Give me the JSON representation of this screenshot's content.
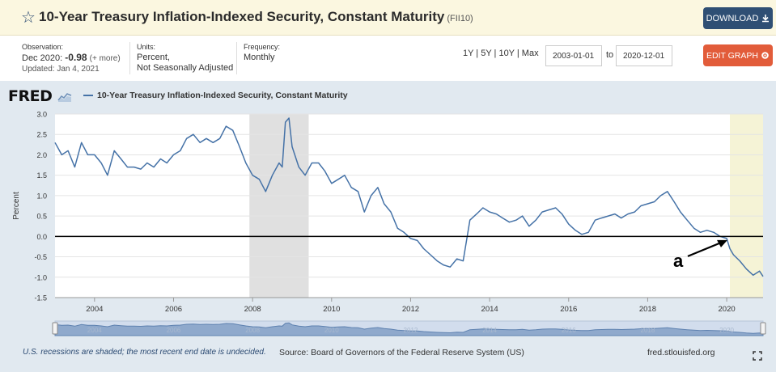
{
  "header": {
    "title": "10-Year Treasury Inflation-Indexed Security, Constant Maturity",
    "series_id": "(FII10)",
    "download_label": "DOWNLOAD",
    "star_icon": "star-icon"
  },
  "meta": {
    "observation_label": "Observation:",
    "observation_date": "Dec 2020:",
    "observation_value": "-0.98",
    "observation_note": "(+ more)",
    "updated": "Updated: Jan 4, 2021",
    "units_label": "Units:",
    "units_line1": "Percent,",
    "units_line2": "Not Seasonally Adjusted",
    "frequency_label": "Frequency:",
    "frequency_value": "Monthly"
  },
  "controls": {
    "range_links": "1Y | 5Y | 10Y | Max",
    "start_date": "2003-01-01",
    "to_label": "to",
    "end_date": "2020-12-01",
    "edit_graph_label": "EDIT GRAPH"
  },
  "logo": {
    "text": "FRED"
  },
  "legend": {
    "label": "10-Year Treasury Inflation-Indexed Security, Constant Maturity"
  },
  "footer": {
    "note": "U.S. recessions are shaded; the most recent end date is undecided.",
    "source": "Source: Board of Governors of the Federal Reserve System (US)",
    "site": "fred.stlouisfed.org"
  },
  "colors": {
    "line": "#4572a7",
    "recession": "#e0e0e0",
    "highlight": "#f5f3d6",
    "accent": "#2f4f74",
    "edit": "#e25c3a"
  },
  "chart_data": {
    "type": "line",
    "title": "10-Year Treasury Inflation-Indexed Security, Constant Maturity",
    "ylabel": "Percent",
    "xlabel": "",
    "ylim": [
      -1.5,
      3.0
    ],
    "xlim": [
      2003.0,
      2020.92
    ],
    "yticks": [
      "3.0",
      "2.5",
      "2.0",
      "1.5",
      "1.0",
      "0.5",
      "0.0",
      "-0.5",
      "-1.0",
      "-1.5"
    ],
    "ytick_values": [
      3.0,
      2.5,
      2.0,
      1.5,
      1.0,
      0.5,
      0.0,
      -0.5,
      -1.0,
      -1.5
    ],
    "xticks": [
      "2004",
      "2006",
      "2008",
      "2010",
      "2012",
      "2014",
      "2016",
      "2018",
      "2020"
    ],
    "xtick_values": [
      2004,
      2006,
      2008,
      2010,
      2012,
      2014,
      2016,
      2018,
      2020
    ],
    "navigator_labels": [
      "2004",
      "2006",
      "2008",
      "2010",
      "2012",
      "2014",
      "2016",
      "2018",
      "2020"
    ],
    "recession": {
      "start": 2007.92,
      "end": 2009.42
    },
    "highlight_region": {
      "start": 2020.08,
      "end": 2020.92
    },
    "zero_line": 0.0,
    "annotation": {
      "label": "a",
      "x": 2020.08,
      "y": -0.05
    },
    "series": [
      {
        "name": "FII10",
        "x": [
          2003.0,
          2003.17,
          2003.33,
          2003.5,
          2003.67,
          2003.83,
          2004.0,
          2004.17,
          2004.33,
          2004.5,
          2004.67,
          2004.83,
          2005.0,
          2005.17,
          2005.33,
          2005.5,
          2005.67,
          2005.83,
          2006.0,
          2006.17,
          2006.33,
          2006.5,
          2006.67,
          2006.83,
          2007.0,
          2007.17,
          2007.33,
          2007.5,
          2007.67,
          2007.83,
          2008.0,
          2008.17,
          2008.33,
          2008.5,
          2008.67,
          2008.75,
          2008.83,
          2008.92,
          2009.0,
          2009.17,
          2009.33,
          2009.5,
          2009.67,
          2009.83,
          2010.0,
          2010.17,
          2010.33,
          2010.5,
          2010.67,
          2010.83,
          2011.0,
          2011.17,
          2011.33,
          2011.5,
          2011.67,
          2011.83,
          2012.0,
          2012.17,
          2012.33,
          2012.5,
          2012.67,
          2012.83,
          2013.0,
          2013.17,
          2013.33,
          2013.5,
          2013.67,
          2013.83,
          2014.0,
          2014.17,
          2014.33,
          2014.5,
          2014.67,
          2014.83,
          2015.0,
          2015.17,
          2015.33,
          2015.5,
          2015.67,
          2015.83,
          2016.0,
          2016.17,
          2016.33,
          2016.5,
          2016.67,
          2016.83,
          2017.0,
          2017.17,
          2017.33,
          2017.5,
          2017.67,
          2017.83,
          2018.0,
          2018.17,
          2018.33,
          2018.5,
          2018.67,
          2018.83,
          2019.0,
          2019.17,
          2019.33,
          2019.5,
          2019.67,
          2019.83,
          2020.0,
          2020.08,
          2020.17,
          2020.33,
          2020.5,
          2020.67,
          2020.83,
          2020.92
        ],
        "values": [
          2.3,
          2.0,
          2.1,
          1.7,
          2.3,
          2.0,
          2.0,
          1.8,
          1.5,
          2.1,
          1.9,
          1.7,
          1.7,
          1.65,
          1.8,
          1.7,
          1.9,
          1.8,
          2.0,
          2.1,
          2.4,
          2.5,
          2.3,
          2.4,
          2.3,
          2.4,
          2.7,
          2.6,
          2.2,
          1.8,
          1.5,
          1.4,
          1.1,
          1.5,
          1.8,
          1.7,
          2.8,
          2.9,
          2.2,
          1.7,
          1.5,
          1.8,
          1.8,
          1.6,
          1.3,
          1.4,
          1.5,
          1.2,
          1.1,
          0.6,
          1.0,
          1.2,
          0.8,
          0.6,
          0.2,
          0.1,
          -0.05,
          -0.1,
          -0.3,
          -0.45,
          -0.6,
          -0.7,
          -0.75,
          -0.55,
          -0.6,
          0.4,
          0.55,
          0.7,
          0.6,
          0.55,
          0.45,
          0.35,
          0.4,
          0.5,
          0.25,
          0.4,
          0.6,
          0.65,
          0.7,
          0.55,
          0.3,
          0.15,
          0.05,
          0.1,
          0.4,
          0.45,
          0.5,
          0.55,
          0.45,
          0.55,
          0.6,
          0.75,
          0.8,
          0.85,
          1.0,
          1.1,
          0.85,
          0.6,
          0.4,
          0.2,
          0.1,
          0.15,
          0.1,
          0.0,
          -0.05,
          -0.3,
          -0.45,
          -0.6,
          -0.8,
          -0.95,
          -0.85,
          -0.98
        ]
      }
    ]
  }
}
